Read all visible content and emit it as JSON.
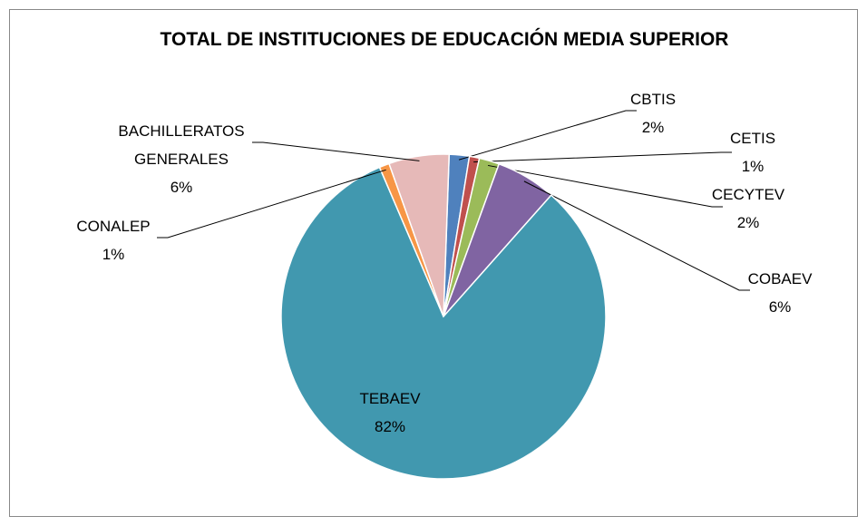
{
  "chart_data": {
    "type": "pie",
    "title": "TOTAL DE INSTITUCIONES DE EDUCACIÓN MEDIA SUPERIOR",
    "categories": [
      "CBTIS",
      "CETIS",
      "CECYTEV",
      "COBAEV",
      "TEBAEV",
      "CONALEP",
      "BACHILLERATOS GENERALES"
    ],
    "values": [
      2,
      1,
      2,
      6,
      82,
      1,
      6
    ],
    "value_labels": [
      "2%",
      "1%",
      "2%",
      "6%",
      "82%",
      "1%",
      "6%"
    ],
    "colors": [
      "#4f81bd",
      "#c0504d",
      "#9bbb59",
      "#8064a2",
      "#4198af",
      "#f79646",
      "#e6b9b8"
    ]
  }
}
